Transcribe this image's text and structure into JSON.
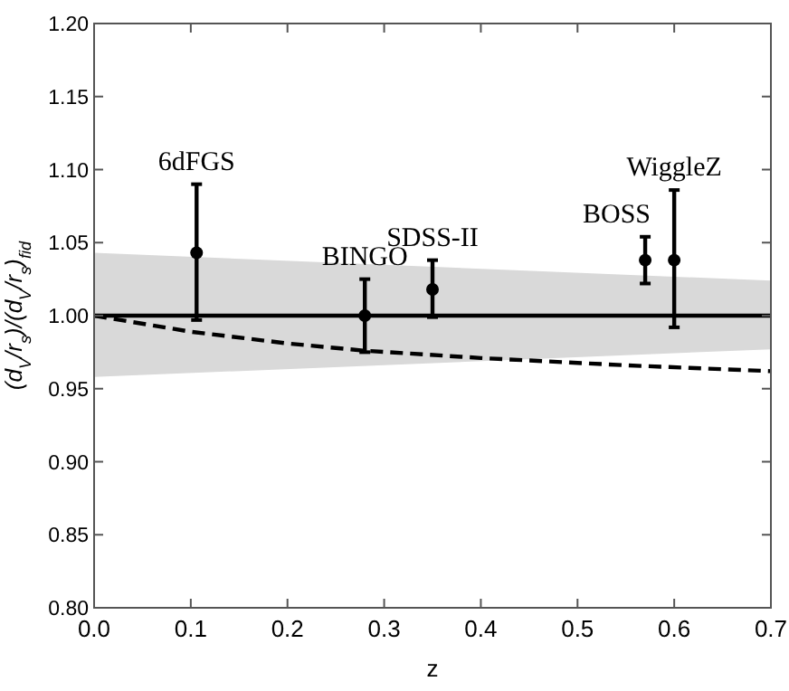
{
  "chart_data": {
    "type": "line",
    "xlabel": "z",
    "ylabel": "(d$_{V}$/r$_{s}$)/(d$_{V}$/r$_{s}$)$_{fid}$",
    "xlim": [
      0,
      0.7
    ],
    "ylim": [
      0.8,
      1.2
    ],
    "xticks": [
      {
        "value": 0,
        "label": "0.0"
      },
      {
        "value": 0.1,
        "label": "0.1"
      },
      {
        "value": 0.2,
        "label": "0.2"
      },
      {
        "value": 0.3,
        "label": "0.3"
      },
      {
        "value": 0.4,
        "label": "0.4"
      },
      {
        "value": 0.5,
        "label": "0.5"
      },
      {
        "value": 0.6,
        "label": "0.6"
      },
      {
        "value": 0.7,
        "label": "0.7"
      }
    ],
    "yticks": [
      {
        "value": 0.8,
        "label": "0.80"
      },
      {
        "value": 0.85,
        "label": "0.85"
      },
      {
        "value": 0.9,
        "label": "0.90"
      },
      {
        "value": 0.95,
        "label": "0.95"
      },
      {
        "value": 1.0,
        "label": "1.00"
      },
      {
        "value": 1.05,
        "label": "1.05"
      },
      {
        "value": 1.1,
        "label": "1.10"
      },
      {
        "value": 1.15,
        "label": "1.15"
      },
      {
        "value": 1.2,
        "label": "1.20"
      }
    ],
    "series": [
      {
        "color": "#000000",
        "line_style": "solid",
        "x": [
          0,
          0.7
        ],
        "values": [
          1.0,
          1.0
        ],
        "lower": [
          0.958,
          0.977
        ],
        "upper": [
          1.043,
          1.024
        ]
      },
      {
        "color": "#000000",
        "line_style": "dashed",
        "x": [
          0,
          0.1,
          0.2,
          0.28,
          0.4,
          0.55,
          0.7
        ],
        "values": [
          1.0,
          0.989,
          0.981,
          0.976,
          0.971,
          0.966,
          0.962
        ]
      },
      {
        "type": "scatter",
        "color": "#000000",
        "marker": "circle",
        "x": [
          0.106,
          0.28,
          0.35,
          0.57,
          0.6
        ],
        "values": [
          1.043,
          1.0,
          1.018,
          1.038,
          1.038
        ],
        "errors": [
          [
            0.997,
            1.09
          ],
          [
            0.975,
            1.025
          ],
          [
            0.999,
            1.038
          ],
          [
            1.022,
            1.054
          ],
          [
            0.992,
            1.086
          ]
        ]
      }
    ],
    "annotations": [
      {
        "text": "6dFGS",
        "x": 0.106,
        "y": 1.043
      },
      {
        "text": "BINGO",
        "x": 0.28,
        "y": 1.0
      },
      {
        "text": "SDSS-II",
        "x": 0.35,
        "y": 1.018
      },
      {
        "text": "BOSS",
        "x": 0.57,
        "y": 1.038
      },
      {
        "text": "WiggleZ",
        "x": 0.6,
        "y": 1.038
      }
    ]
  }
}
